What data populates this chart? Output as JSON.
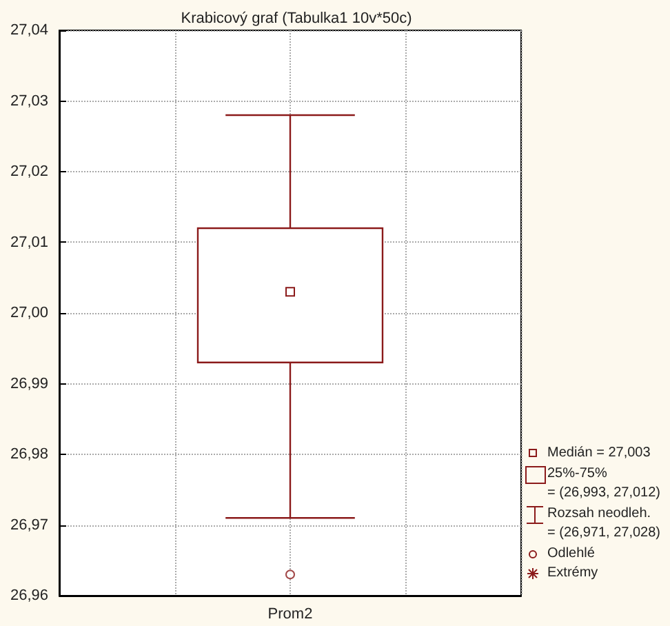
{
  "chart_data": {
    "type": "box",
    "title": "Krabicový graf (Tabulka1 10v*50c)",
    "categories": [
      "Prom2"
    ],
    "boxes": [
      {
        "low": 26.971,
        "q1": 26.993,
        "median": 27.003,
        "q3": 27.012,
        "high": 27.028,
        "outliers": [
          26.963
        ]
      }
    ],
    "color": "#8b1a1a",
    "ylim": [
      26.96,
      27.04
    ],
    "yticks": [
      {
        "value": 26.96,
        "label": "26,96"
      },
      {
        "value": 26.97,
        "label": "26,97"
      },
      {
        "value": 26.98,
        "label": "26,98"
      },
      {
        "value": 26.99,
        "label": "26,99"
      },
      {
        "value": 27.0,
        "label": "27,00"
      },
      {
        "value": 27.01,
        "label": "27,01"
      },
      {
        "value": 27.02,
        "label": "27,02"
      },
      {
        "value": 27.03,
        "label": "27,03"
      },
      {
        "value": 27.04,
        "label": "27,04"
      }
    ],
    "grid": true,
    "annotations": [
      "Medián = 27,003",
      "25%-75%",
      "= (26,993, 27,012)",
      "Rozsah neodleh.",
      "= (26,971, 27,028)",
      "Odlehlé",
      "Extrémy"
    ]
  }
}
